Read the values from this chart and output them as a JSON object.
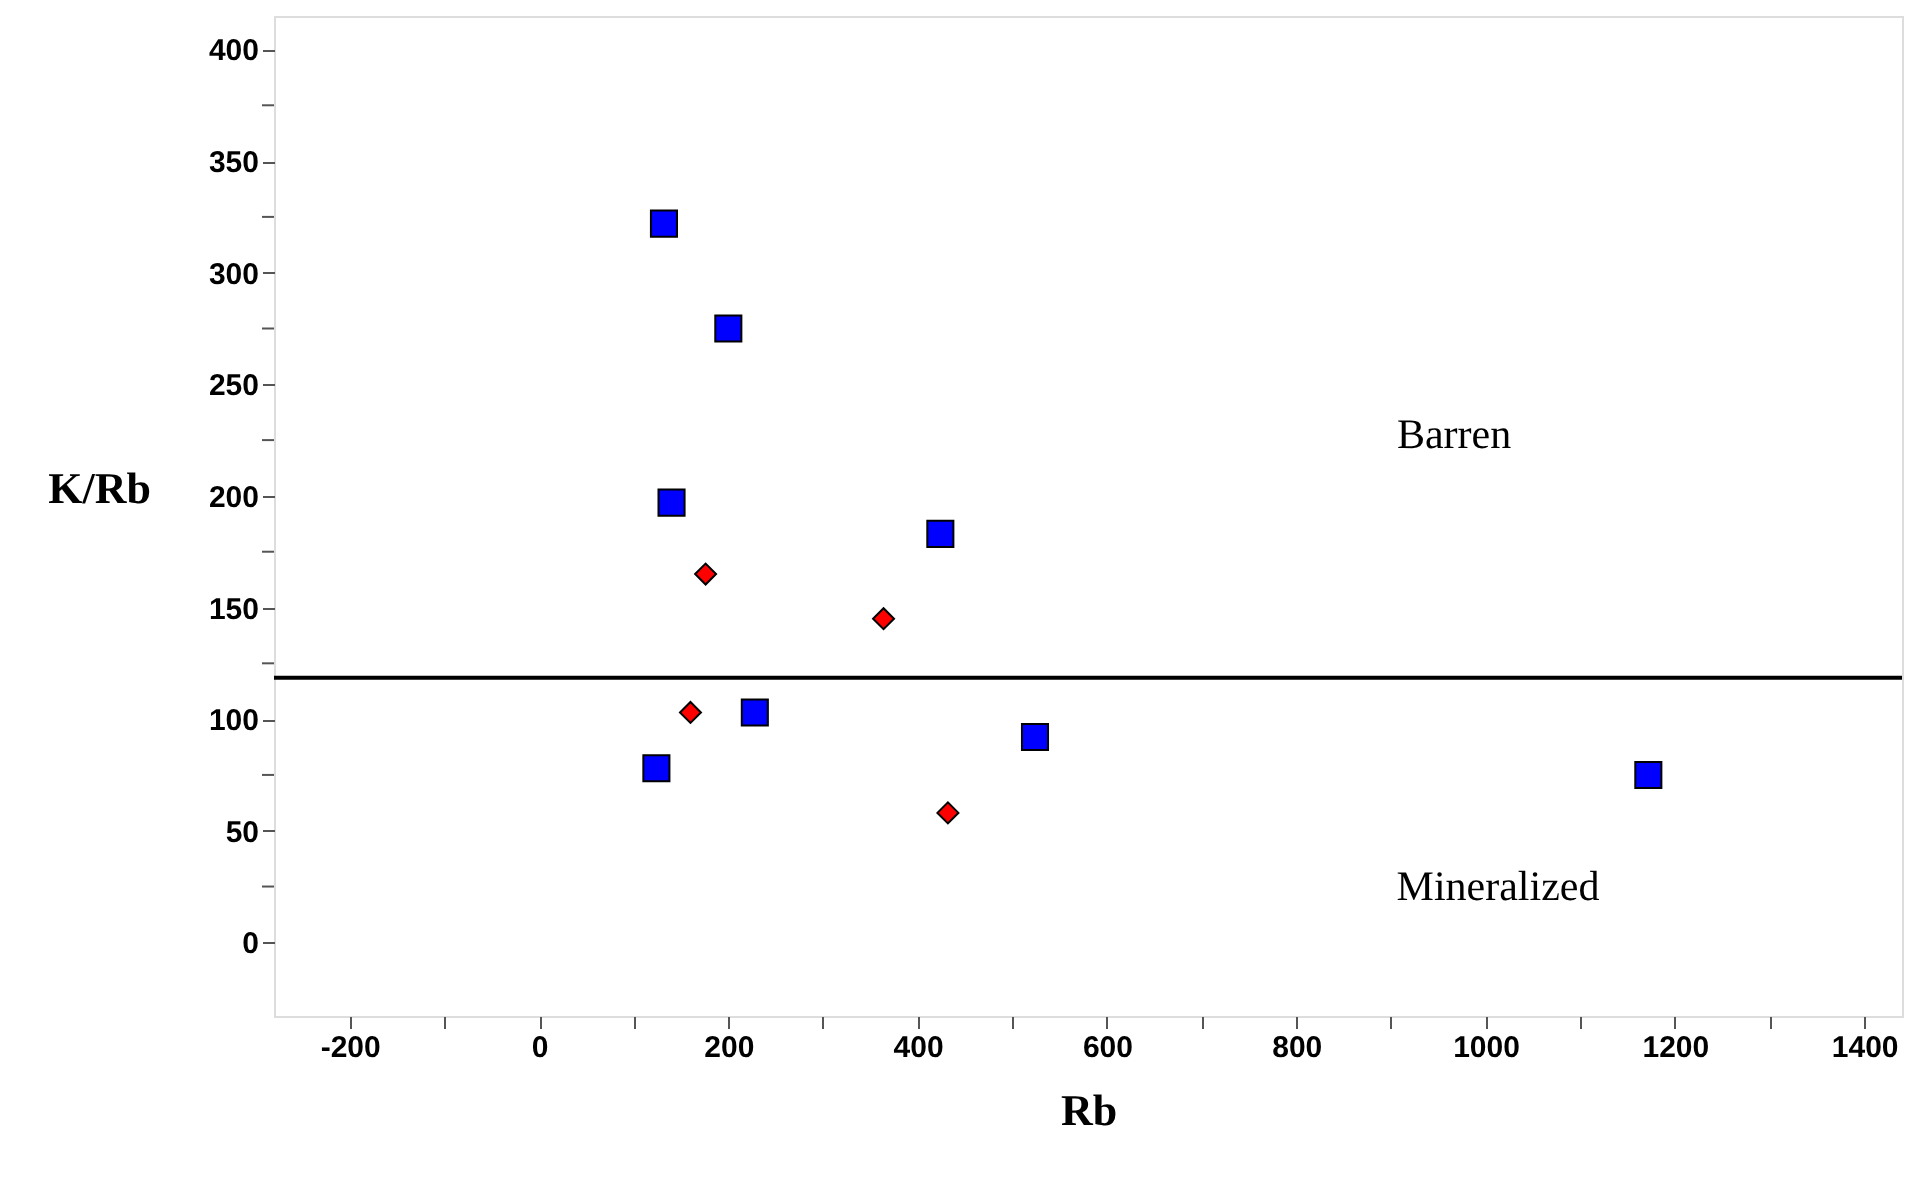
{
  "chart_data": {
    "type": "scatter",
    "xlabel": "Rb",
    "ylabel": "K/Rb",
    "xlim": [
      -280,
      1440
    ],
    "ylim": [
      -33,
      415
    ],
    "xticks": [
      -200,
      {
        "value": -100,
        "label": null
      },
      0,
      {
        "value": 100,
        "label": null
      },
      200,
      {
        "value": 300,
        "label": null
      },
      400,
      {
        "value": 500,
        "label": null
      },
      600,
      {
        "value": 700,
        "label": null
      },
      800,
      {
        "value": 900,
        "label": null
      },
      1000,
      {
        "value": 1100,
        "label": null
      },
      1200,
      {
        "value": 1300,
        "label": null
      },
      1400
    ],
    "yticks": [
      0,
      {
        "value": 25,
        "label": null
      },
      50,
      {
        "value": 75,
        "label": null
      },
      100,
      {
        "value": 125,
        "label": null
      },
      150,
      {
        "value": 175,
        "label": null
      },
      200,
      {
        "value": 225,
        "label": null
      },
      250,
      {
        "value": 275,
        "label": null
      },
      300,
      {
        "value": 325,
        "label": null
      },
      350,
      {
        "value": 375,
        "label": null
      },
      400
    ],
    "series": [
      {
        "color": "#0000ff",
        "marker": "square",
        "x": [
          132,
          200,
          140,
          424,
          228,
          124,
          524,
          1172
        ],
        "values": [
          322,
          275,
          197,
          183,
          103,
          78,
          92,
          75
        ]
      },
      {
        "color": "#ff0000",
        "marker": "diamond",
        "x": [
          176,
          364,
          160,
          432
        ],
        "values": [
          165,
          145,
          103,
          58
        ]
      }
    ],
    "ref_lines": [
      {
        "axis": "y",
        "value": 118.5,
        "color": "#000000"
      }
    ],
    "annotations": [
      "Barren",
      "Mineralized"
    ],
    "grid": false
  }
}
